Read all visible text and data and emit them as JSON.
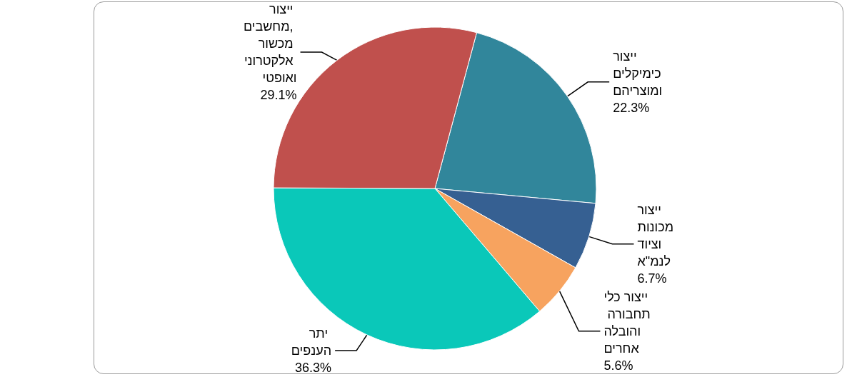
{
  "chart_data": {
    "type": "pie",
    "categories": [
      "ייצור כימיקלים ומוצריהם",
      "ייצור מכונות וציוד לנמ\"א",
      "ייצור כלי תחבורה והובלה אחרים",
      "יתר הענפים",
      "ייצור מחשבים, מכשור אלקטרוני ואופטי"
    ],
    "values": [
      22.3,
      6.7,
      5.6,
      36.3,
      29.1
    ],
    "colors": [
      "#31869b",
      "#366092",
      "#f7a35f",
      "#0ac8b9",
      "#c0504d"
    ],
    "value_labels": [
      "22.3%",
      "6.7%",
      "5.6%",
      "36.3%",
      "29.1%"
    ],
    "legend": false
  }
}
